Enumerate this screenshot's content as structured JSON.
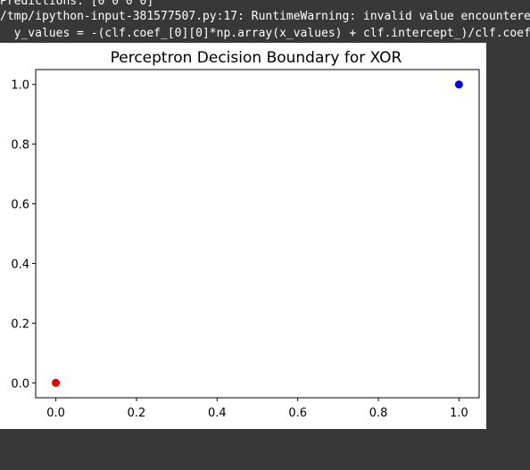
{
  "stdout": {
    "lines": [
      "Predictions: [0 0 0 0]",
      "/tmp/ipython-input-381577507.py:17: RuntimeWarning: invalid value encountered",
      "  y_values = -(clf.coef_[0][0]*np.array(x_values) + clf.intercept_)/clf.coef_["
    ]
  },
  "colors": {
    "background": "#383838",
    "text": "#ffffff",
    "figure_background": "#ffffff",
    "class_0": "#e00000",
    "class_1": "#0000e0"
  },
  "chart_data": {
    "type": "scatter",
    "title": "Perceptron Decision Boundary for XOR",
    "xlabel": "",
    "ylabel": "",
    "xlim": [
      -0.05,
      1.05
    ],
    "ylim": [
      -0.05,
      1.05
    ],
    "x_ticks": [
      "0.0",
      "0.2",
      "0.4",
      "0.6",
      "0.8",
      "1.0"
    ],
    "y_ticks": [
      "0.0",
      "0.2",
      "0.4",
      "0.6",
      "0.8",
      "1.0"
    ],
    "grid": false,
    "series": [
      {
        "color": "#e00000",
        "points": [
          [
            0.0,
            0.0
          ]
        ]
      },
      {
        "color": "#0000e0",
        "points": [
          [
            1.0,
            1.0
          ]
        ]
      }
    ]
  }
}
